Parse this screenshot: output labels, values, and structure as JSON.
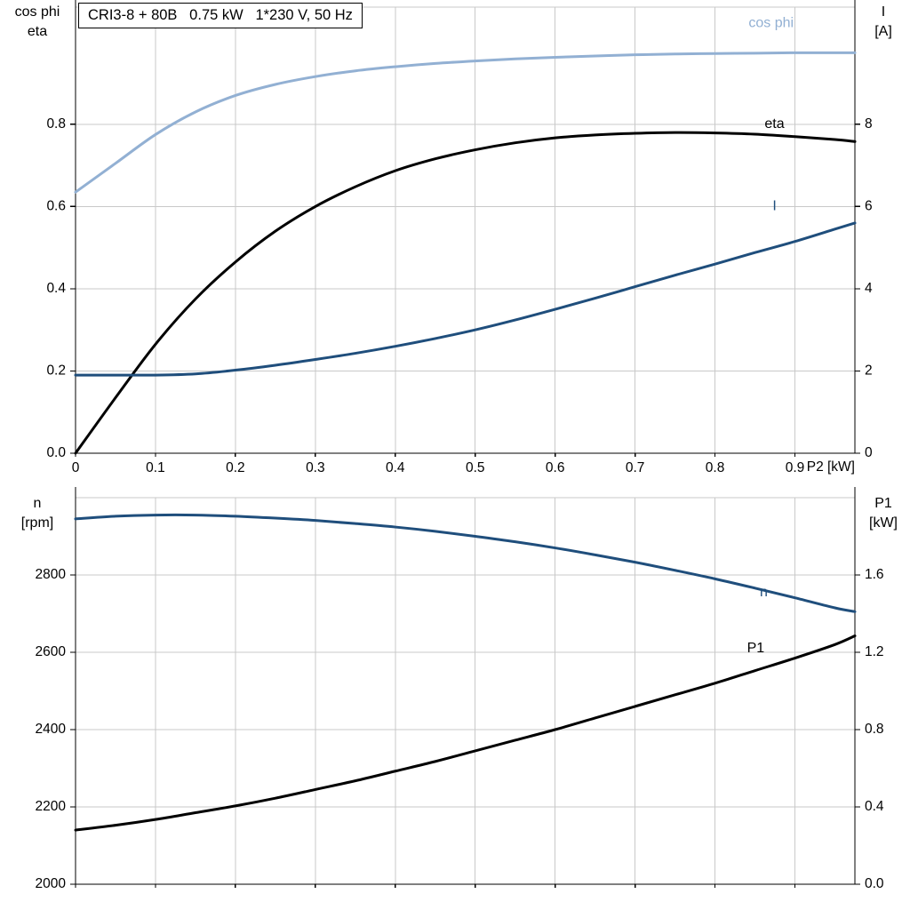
{
  "header": {
    "title_box": "CRI3-8 + 80B   0.75 kW   1*230 V, 50 Hz"
  },
  "corner_labels": {
    "top_left_line1": "cos phi",
    "top_left_line2": "eta",
    "top_right_line1": "I",
    "top_right_line2": "[A]",
    "bottom_left_line1": "n",
    "bottom_left_line2": "[rpm]",
    "bottom_right_line1": "P1",
    "bottom_right_line2": "[kW]"
  },
  "colors": {
    "grid": "#c9c9c9",
    "axis": "#000000",
    "light_blue": "#92b0d3",
    "dark_blue": "#1f4e7c",
    "black": "#000000"
  },
  "chart_data": [
    {
      "type": "line",
      "title": "CRI3-8 + 80B   0.75 kW   1*230 V, 50 Hz",
      "x_label": "P2 [kW]",
      "x_range": [
        0,
        0.975
      ],
      "x_ticks": [
        0,
        0.1,
        0.2,
        0.3,
        0.4,
        0.5,
        0.6,
        0.7,
        0.8,
        0.9
      ],
      "x_tick_labels": [
        "0",
        "0.1",
        "0.2",
        "0.3",
        "0.4",
        "0.5",
        "0.6",
        "0.7",
        "0.8",
        "0.9"
      ],
      "grid": true,
      "left_axis": {
        "title": "cos phi / eta",
        "range": [
          0,
          1.085
        ],
        "ticks": [
          0,
          0.2,
          0.4,
          0.6,
          0.8
        ],
        "tick_labels": [
          "0.0",
          "0.2",
          "0.4",
          "0.6",
          "0.8"
        ]
      },
      "right_axis": {
        "title": "I [A]",
        "range": [
          0,
          10.85
        ],
        "ticks": [
          0,
          2,
          4,
          6,
          8
        ],
        "tick_labels": [
          "0",
          "2",
          "4",
          "6",
          "8"
        ]
      },
      "series": [
        {
          "name": "cos phi",
          "axis": "left",
          "color": "#92b0d3",
          "width": 3,
          "x": [
            0,
            0.05,
            0.1,
            0.15,
            0.2,
            0.25,
            0.3,
            0.35,
            0.4,
            0.45,
            0.5,
            0.55,
            0.6,
            0.65,
            0.7,
            0.75,
            0.8,
            0.85,
            0.9,
            0.95,
            0.975
          ],
          "y": [
            0.635,
            0.705,
            0.775,
            0.83,
            0.87,
            0.897,
            0.916,
            0.93,
            0.94,
            0.948,
            0.954,
            0.959,
            0.963,
            0.966,
            0.969,
            0.971,
            0.972,
            0.973,
            0.974,
            0.974,
            0.974
          ],
          "label": {
            "text": "cos phi",
            "x": 0.842,
            "y": 1.045
          }
        },
        {
          "name": "eta",
          "axis": "left",
          "color": "#000000",
          "width": 3,
          "x": [
            0,
            0.05,
            0.1,
            0.15,
            0.2,
            0.25,
            0.3,
            0.35,
            0.4,
            0.45,
            0.5,
            0.55,
            0.6,
            0.65,
            0.7,
            0.75,
            0.8,
            0.85,
            0.9,
            0.95,
            0.975
          ],
          "y": [
            0.0,
            0.135,
            0.265,
            0.375,
            0.465,
            0.54,
            0.6,
            0.648,
            0.687,
            0.716,
            0.738,
            0.755,
            0.767,
            0.774,
            0.778,
            0.78,
            0.779,
            0.776,
            0.77,
            0.763,
            0.758
          ],
          "label": {
            "text": "eta",
            "x": 0.862,
            "y": 0.8
          }
        },
        {
          "name": "I",
          "axis": "right",
          "color": "#1f4e7c",
          "width": 3,
          "x": [
            0,
            0.05,
            0.1,
            0.15,
            0.2,
            0.25,
            0.3,
            0.35,
            0.4,
            0.45,
            0.5,
            0.55,
            0.6,
            0.65,
            0.7,
            0.75,
            0.8,
            0.85,
            0.9,
            0.95,
            0.975
          ],
          "y": [
            1.9,
            1.9,
            1.9,
            1.93,
            2.02,
            2.14,
            2.28,
            2.43,
            2.6,
            2.79,
            3.0,
            3.24,
            3.5,
            3.77,
            4.05,
            4.33,
            4.6,
            4.88,
            5.15,
            5.45,
            5.6
          ],
          "label": {
            "text": "I",
            "x": 0.872,
            "y": 6.0
          }
        }
      ]
    },
    {
      "type": "line",
      "title": "",
      "x_label": "",
      "x_range": [
        0,
        0.975
      ],
      "x_ticks": [
        0,
        0.1,
        0.2,
        0.3,
        0.4,
        0.5,
        0.6,
        0.7,
        0.8,
        0.9
      ],
      "x_tick_labels": [],
      "grid": true,
      "left_axis": {
        "title": "n [rpm]",
        "range": [
          2000,
          3000
        ],
        "ticks": [
          2000,
          2200,
          2400,
          2600,
          2800
        ],
        "tick_labels": [
          "2000",
          "2200",
          "2400",
          "2600",
          "2800"
        ]
      },
      "right_axis": {
        "title": "P1 [kW]",
        "range": [
          0,
          2.0
        ],
        "ticks": [
          0,
          0.4,
          0.8,
          1.2,
          1.6
        ],
        "tick_labels": [
          "0.0",
          "0.4",
          "0.8",
          "1.2",
          "1.6"
        ]
      },
      "series": [
        {
          "name": "n",
          "axis": "left",
          "color": "#1f4e7c",
          "width": 3,
          "x": [
            0,
            0.05,
            0.1,
            0.15,
            0.2,
            0.25,
            0.3,
            0.35,
            0.4,
            0.45,
            0.5,
            0.55,
            0.6,
            0.65,
            0.7,
            0.75,
            0.8,
            0.85,
            0.9,
            0.95,
            0.975
          ],
          "y": [
            2945,
            2952,
            2955,
            2955,
            2952,
            2947,
            2941,
            2933,
            2924,
            2913,
            2900,
            2886,
            2870,
            2852,
            2833,
            2812,
            2790,
            2766,
            2741,
            2715,
            2705
          ],
          "label": {
            "text": "n",
            "x": 0.856,
            "y": 2754
          }
        },
        {
          "name": "P1",
          "axis": "right",
          "color": "#000000",
          "width": 3,
          "x": [
            0,
            0.05,
            0.1,
            0.15,
            0.2,
            0.25,
            0.3,
            0.35,
            0.4,
            0.45,
            0.5,
            0.55,
            0.6,
            0.65,
            0.7,
            0.75,
            0.8,
            0.85,
            0.9,
            0.95,
            0.975
          ],
          "y": [
            0.28,
            0.305,
            0.335,
            0.37,
            0.405,
            0.445,
            0.49,
            0.535,
            0.585,
            0.635,
            0.69,
            0.745,
            0.8,
            0.86,
            0.92,
            0.98,
            1.04,
            1.105,
            1.17,
            1.24,
            1.285
          ],
          "label": {
            "text": "P1",
            "x": 0.84,
            "y": 1.22
          }
        }
      ]
    }
  ]
}
